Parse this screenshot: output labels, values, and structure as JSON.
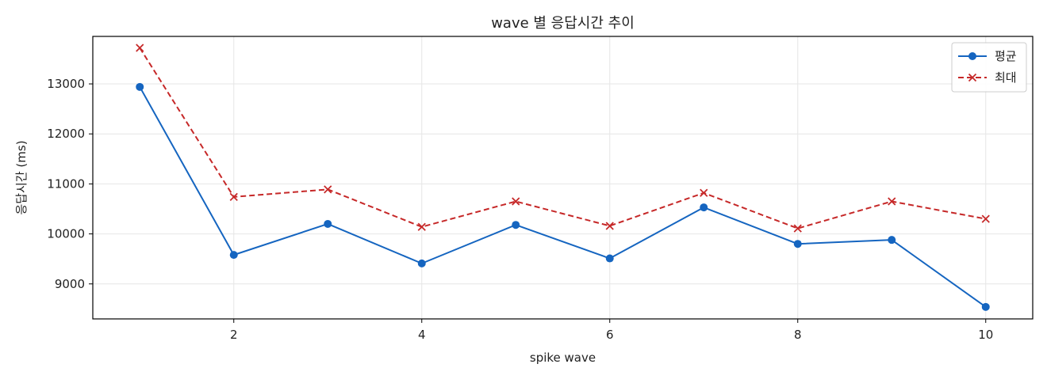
{
  "chart_data": {
    "type": "line",
    "title": "wave 별 응답시간 추이",
    "xlabel": "spike wave",
    "ylabel": "응답시간 (ms)",
    "x": [
      1,
      2,
      3,
      4,
      5,
      6,
      7,
      8,
      9,
      10
    ],
    "xlim": [
      0.5,
      10.5
    ],
    "ylim": [
      8300,
      13950
    ],
    "x_ticks": [
      2,
      4,
      6,
      8,
      10
    ],
    "y_ticks": [
      9000,
      10000,
      11000,
      12000,
      13000
    ],
    "grid": true,
    "legend_position": "top-right",
    "series": [
      {
        "name": "평균",
        "values": [
          12940,
          9580,
          10200,
          9410,
          10180,
          9510,
          10530,
          9800,
          9880,
          8540
        ],
        "color": "#1565c0",
        "marker": "circle",
        "line_style": "solid"
      },
      {
        "name": "최대",
        "values": [
          13720,
          10740,
          10890,
          10140,
          10650,
          10160,
          10820,
          10110,
          10650,
          10300
        ],
        "color": "#c62828",
        "marker": "x",
        "line_style": "dashed"
      }
    ]
  }
}
